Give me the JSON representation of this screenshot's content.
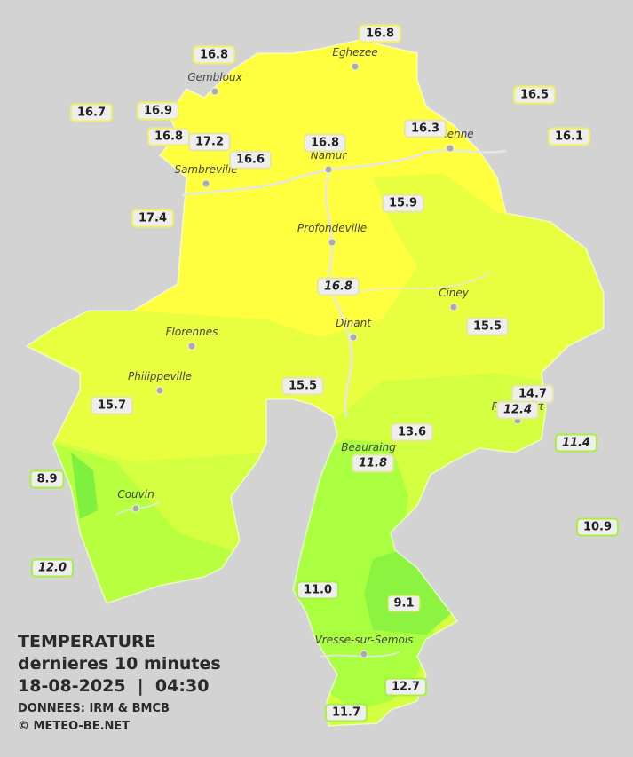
{
  "legend": {
    "title": "TEMPERATURE",
    "subtitle": "dernieres 10 minutes",
    "datetime": "18-08-2025  |  04:30",
    "source": "DONNEES: IRM & BMCB",
    "credit": "© METEO-BE.NET"
  },
  "cities": [
    "Gembloux",
    "Eghezee",
    "Andenne",
    "Namur",
    "Sambreville",
    "Profondeville",
    "Ciney",
    "Florennes",
    "Dinant",
    "Philippeville",
    "Rochefort",
    "Beauraing",
    "Couvin",
    "Vresse-sur-Semois"
  ],
  "stations": [
    "16.8",
    "16.8",
    "16.5",
    "16.7",
    "16.9",
    "16.8",
    "17.2",
    "16.1",
    "16.3",
    "16.6",
    "16.8",
    "17.4",
    "15.9",
    "16.8",
    "15.5",
    "15.5",
    "15.7",
    "14.7",
    "12.4",
    "13.6",
    "11.4",
    "11.8",
    "8.9",
    "10.9",
    "12.0",
    "11.0",
    "9.1",
    "12.7",
    "11.7"
  ]
}
